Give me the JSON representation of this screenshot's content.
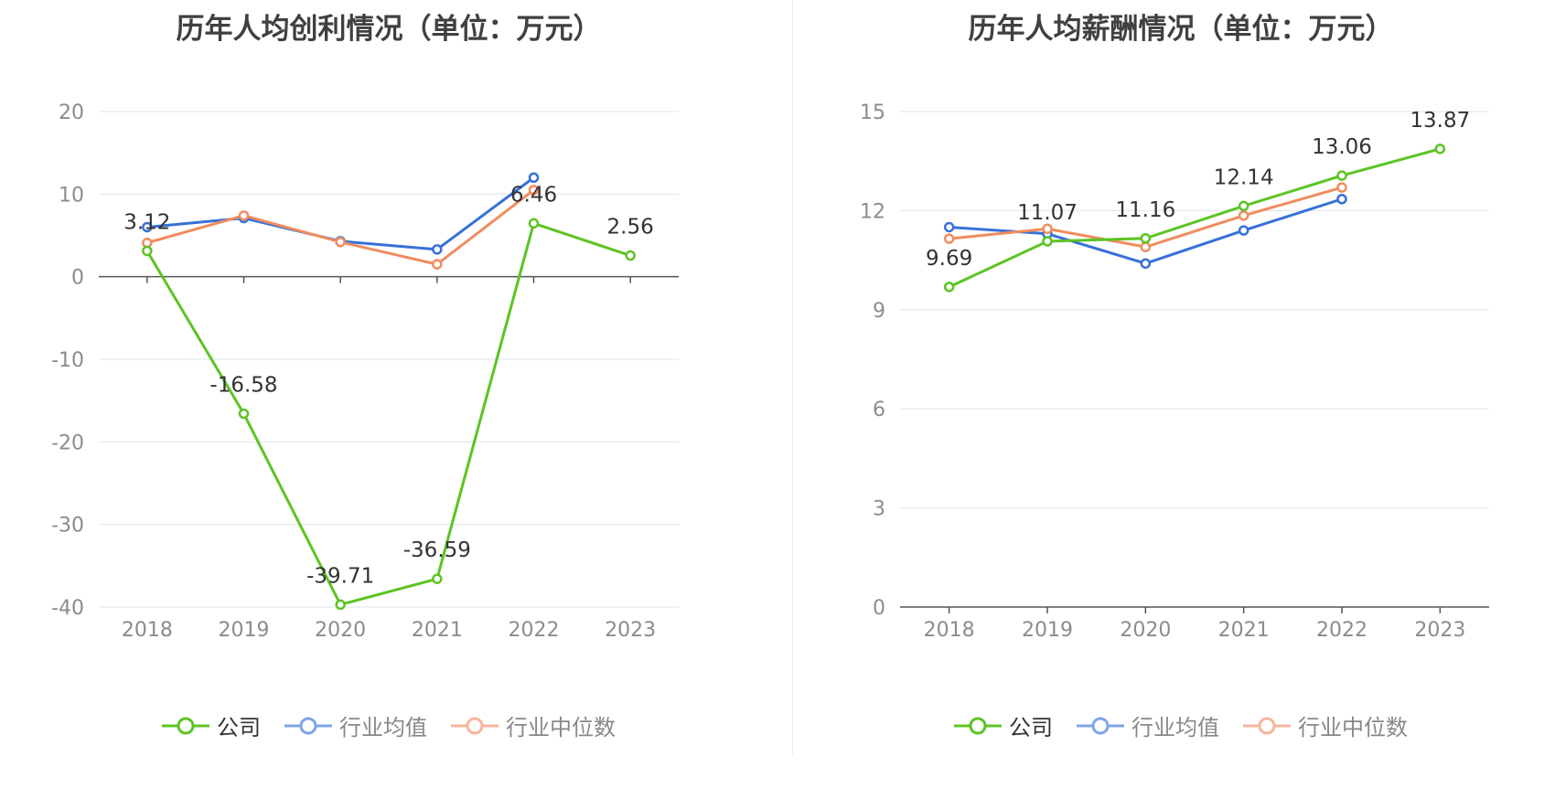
{
  "legend": {
    "items": [
      {
        "label": "公司",
        "color": "#5cc424",
        "muted": false
      },
      {
        "label": "行业均值",
        "color": "#7fa4e8",
        "muted": true
      },
      {
        "label": "行业中位数",
        "color": "#f6b59c",
        "muted": true
      }
    ]
  },
  "chart_data": [
    {
      "type": "line",
      "title": "历年人均创利情况（单位：万元）",
      "categories": [
        "2018",
        "2019",
        "2020",
        "2021",
        "2022",
        "2023"
      ],
      "ylim": [
        -40,
        20
      ],
      "yticks": [
        20,
        10,
        0,
        -10,
        -20,
        -30,
        -40
      ],
      "grid": true,
      "legend_position": "bottom",
      "series": [
        {
          "name": "公司",
          "color": "#5cc424",
          "values": [
            3.12,
            -16.58,
            -39.71,
            -36.59,
            6.46,
            2.56
          ],
          "labels": [
            "3.12",
            "-16.58",
            "-39.71",
            "-36.59",
            "6.46",
            "2.56"
          ]
        },
        {
          "name": "行业均值",
          "color": "#3671d8",
          "values": [
            6.0,
            7.1,
            4.3,
            3.3,
            12.0,
            null
          ]
        },
        {
          "name": "行业中位数",
          "color": "#f08c5e",
          "values": [
            4.1,
            7.4,
            4.2,
            1.5,
            10.5,
            null
          ]
        }
      ]
    },
    {
      "type": "line",
      "title": "历年人均薪酬情况（单位：万元）",
      "categories": [
        "2018",
        "2019",
        "2020",
        "2021",
        "2022",
        "2023"
      ],
      "ylim": [
        0,
        15
      ],
      "yticks": [
        15,
        12,
        9,
        6,
        3,
        0
      ],
      "grid": true,
      "legend_position": "bottom",
      "series": [
        {
          "name": "公司",
          "color": "#5cc424",
          "values": [
            9.69,
            11.07,
            11.16,
            12.14,
            13.06,
            13.87
          ],
          "labels": [
            "9.69",
            "11.07",
            "11.16",
            "12.14",
            "13.06",
            "13.87"
          ]
        },
        {
          "name": "行业均值",
          "color": "#3671d8",
          "values": [
            11.5,
            11.3,
            10.4,
            11.4,
            12.35,
            null
          ]
        },
        {
          "name": "行业中位数",
          "color": "#f08c5e",
          "values": [
            11.15,
            11.45,
            10.9,
            11.85,
            12.7,
            null
          ]
        }
      ]
    }
  ]
}
